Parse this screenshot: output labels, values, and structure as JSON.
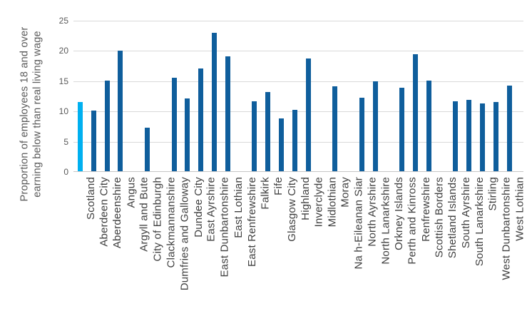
{
  "chart_data": {
    "type": "bar",
    "title": "",
    "xlabel": "",
    "ylabel": "Proportion of employees 18 and over earning below than real living wage",
    "ylabel_lines": [
      "Proportion of employees 18 and over",
      "earning below than real living wage"
    ],
    "ylim": [
      0,
      25
    ],
    "ytick_values": [
      0,
      5,
      10,
      15,
      20,
      25
    ],
    "grid": "horizontal gridlines on",
    "legend_position": "none",
    "categories": [
      "Scotland",
      "Aberdeen City",
      "Aberdeenshire",
      "Angus",
      "Argyll and Bute",
      "City of Edinburgh",
      "Clackmannanshire",
      "Dumfries and Galloway",
      "Dundee City",
      "East Ayrshire",
      "East Dunbartonshire",
      "East Lothian",
      "East Renfrewshire",
      "Falkirk",
      "Fife",
      "Glasgow City",
      "Highland",
      "Inverclyde",
      "Midlothian",
      "Moray",
      "Na h-Eileanan Siar",
      "North Ayrshire",
      "North Lanarkshire",
      "Orkney Islands",
      "Perth and Kinross",
      "Renfrewshire",
      "Scottish Borders",
      "Shetland Islands",
      "South Ayrshire",
      "South Lanarkshire",
      "Stirling",
      "West Dunbartonshire",
      "West Lothian"
    ],
    "values": [
      11.4,
      10.0,
      15.0,
      19.9,
      null,
      7.2,
      null,
      15.5,
      12.0,
      17.0,
      22.9,
      19.0,
      null,
      11.6,
      13.1,
      8.7,
      10.1,
      18.6,
      null,
      14.0,
      null,
      12.2,
      14.9,
      null,
      13.8,
      19.3,
      15.0,
      null,
      11.5,
      11.8,
      11.2,
      11.4,
      14.2
    ],
    "categories_without_bars": [
      "Argyll and Bute",
      "Clackmannanshire",
      "East Renfrewshire",
      "Midlothian",
      "Na h-Eileanan Siar",
      "Orkney Islands",
      "Shetland Islands"
    ],
    "highlight_category": "Scotland",
    "colors": {
      "bar": "#0f5e9c",
      "highlight_bar": "#00b0f0",
      "gridline": "#d9d9d9",
      "axis_line": "#c6c6c6",
      "tick_text": "#595959",
      "axis_title_text": "#595959",
      "category_text": "#3f3f3f"
    }
  }
}
